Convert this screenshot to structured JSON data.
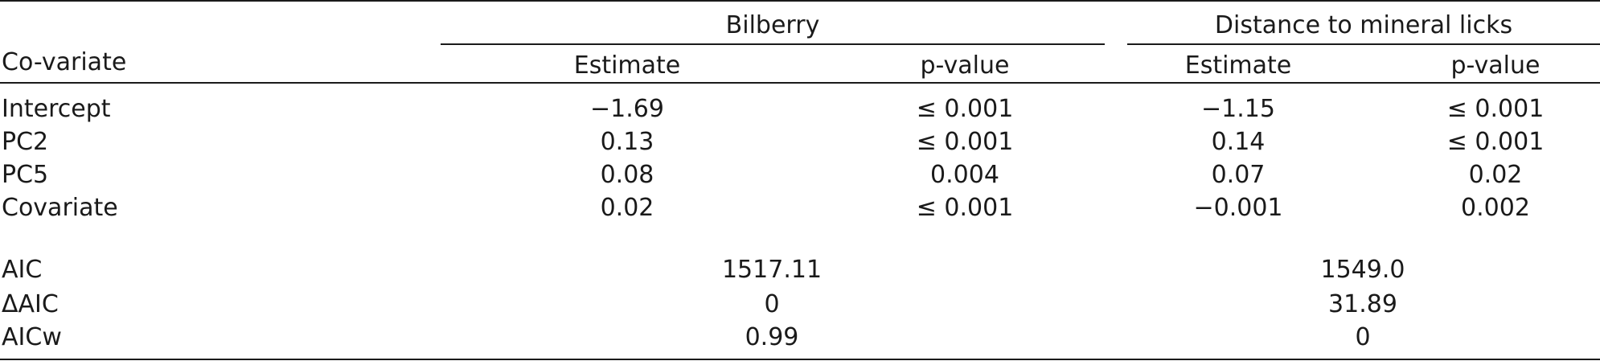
{
  "table": {
    "stub_header": "Co-variate",
    "groups": [
      "Bilberry",
      "Distance to mineral licks"
    ],
    "subheaders": [
      "Estimate",
      "p-value",
      "Estimate",
      "p-value"
    ],
    "rows": [
      {
        "label": "Intercept",
        "values": [
          "−1.69",
          "≤ 0.001",
          "−1.15",
          "≤ 0.001"
        ]
      },
      {
        "label": "PC2",
        "values": [
          "0.13",
          "≤ 0.001",
          "0.14",
          "≤ 0.001"
        ]
      },
      {
        "label": "PC5",
        "values": [
          "0.08",
          "0.004",
          "0.07",
          "0.02"
        ]
      },
      {
        "label": "Covariate",
        "values": [
          "0.02",
          "≤ 0.001",
          "−0.001",
          "0.002"
        ]
      }
    ],
    "model_rows": [
      {
        "label": "AIC",
        "values": [
          "1517.11",
          "1549.0"
        ]
      },
      {
        "label": "ΔAIC",
        "values": [
          "0",
          "31.89"
        ]
      },
      {
        "label": "AICw",
        "values": [
          "0.99",
          "0"
        ]
      }
    ]
  }
}
